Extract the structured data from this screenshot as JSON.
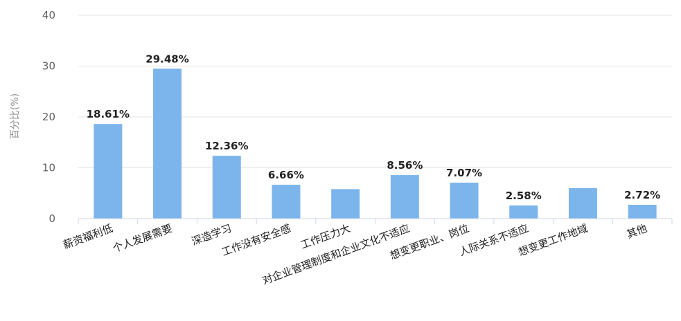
{
  "chart_data": {
    "type": "bar",
    "title": "",
    "xlabel": "",
    "ylabel": "百分比(%)",
    "ylim": [
      0,
      40
    ],
    "yticks": [
      0,
      10,
      20,
      30,
      40
    ],
    "grid": true,
    "legend": "none",
    "bar_color": "#7cb5ec",
    "categories": [
      "薪资福利低",
      "个人发展需要",
      "深造学习",
      "工作没有安全感",
      "工作压力大",
      "对企业管理制度和企业文化不适应",
      "想变更职业、岗位",
      "人际关系不适应",
      "想变更工作地域",
      "其他"
    ],
    "values": [
      18.61,
      29.48,
      12.36,
      6.66,
      5.8,
      8.56,
      7.07,
      2.58,
      6.0,
      2.72
    ],
    "data_labels": [
      "18.61%",
      "29.48%",
      "12.36%",
      "6.66%",
      "",
      "8.56%",
      "7.07%",
      "2.58%",
      "",
      "2.72%"
    ]
  }
}
